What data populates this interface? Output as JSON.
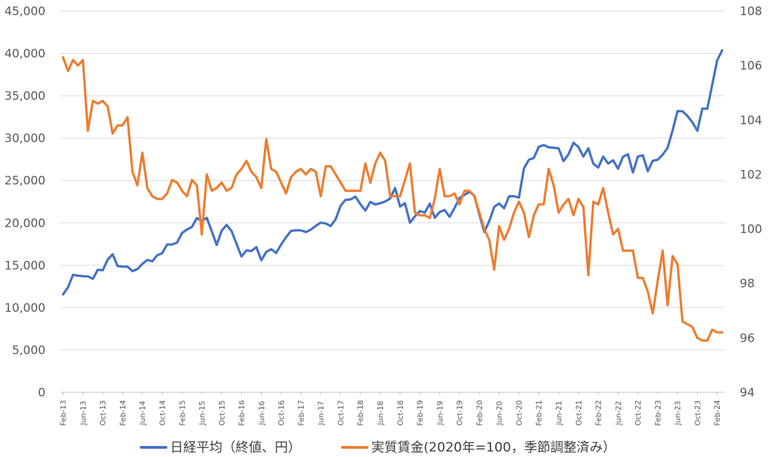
{
  "chart_data": {
    "type": "line",
    "title": "",
    "xlabel": "",
    "ylabel": "",
    "y_left": {
      "min": 0,
      "max": 45000,
      "step": 5000,
      "ticks": [
        "0",
        "5,000",
        "10,000",
        "15,000",
        "20,000",
        "25,000",
        "30,000",
        "35,000",
        "40,000",
        "45,000"
      ]
    },
    "y_right": {
      "min": 94,
      "max": 108,
      "step": 2,
      "ticks": [
        "94",
        "96",
        "98",
        "100",
        "102",
        "104",
        "106",
        "108"
      ]
    },
    "x_tick_labels": [
      "Feb-13",
      "Jun-13",
      "Oct-13",
      "Feb-14",
      "Jun-14",
      "Oct-14",
      "Feb-15",
      "Jun-15",
      "Oct-15",
      "Feb-16",
      "Jun-16",
      "Oct-16",
      "Feb-17",
      "Jun-17",
      "Oct-17",
      "Feb-18",
      "Jun-18",
      "Oct-18",
      "Feb-19",
      "Jun-19",
      "Oct-19",
      "Feb-20",
      "Jun-20",
      "Oct-20",
      "Feb-21",
      "Jun-21",
      "Oct-21",
      "Feb-22",
      "Jun-22",
      "Oct-22",
      "Feb-23",
      "Jun-23",
      "Oct-23",
      "Feb-24"
    ],
    "x_tick_every_months": 4,
    "start_label": "Feb-13",
    "gridlines": true,
    "legend_position": "bottom",
    "series": [
      {
        "name": "日経平均（終値、円）",
        "axis": "left",
        "color": "#4472C4",
        "values": [
          11560,
          12400,
          13860,
          13770,
          13700,
          13680,
          13390,
          14460,
          14400,
          15660,
          16290,
          14900,
          14830,
          14830,
          14300,
          14540,
          15160,
          15620,
          15460,
          16170,
          16410,
          17450,
          17450,
          17670,
          18800,
          19210,
          19520,
          20560,
          20230,
          20590,
          19000,
          17390,
          19070,
          19750,
          19030,
          17520,
          16030,
          16750,
          16680,
          17140,
          15580,
          16570,
          16890,
          16450,
          17430,
          18310,
          19040,
          19120,
          19110,
          18910,
          19200,
          19650,
          20030,
          19920,
          19630,
          20420,
          22010,
          22720,
          22760,
          23100,
          22200,
          21450,
          22470,
          22170,
          22320,
          22520,
          22870,
          24120,
          21920,
          22310,
          20010,
          20770,
          21390,
          21210,
          22260,
          20600,
          21280,
          21520,
          20700,
          21760,
          22930,
          23300,
          23660,
          23210,
          20990,
          18920,
          20190,
          21880,
          22290,
          21710,
          23140,
          23140,
          22980,
          26430,
          27440,
          27660,
          28970,
          29180,
          28910,
          28860,
          28790,
          27280,
          28090,
          29450,
          28960,
          27820,
          28790,
          26990,
          26530,
          27820,
          27000,
          27380,
          26390,
          27800,
          28090,
          25940,
          27820,
          27970,
          26090,
          27330,
          27450,
          28040,
          28860,
          30890,
          33190,
          33170,
          32620,
          31860,
          30860,
          33490,
          33460,
          36290,
          39170,
          40370
        ]
      },
      {
        "name": "実質賃金(2020年=100，季節調整済み）",
        "axis": "right",
        "color": "#ED7D31",
        "values": [
          106.3,
          105.8,
          106.2,
          106.0,
          106.2,
          103.6,
          104.7,
          104.6,
          104.7,
          104.5,
          103.5,
          103.8,
          103.8,
          104.1,
          102.1,
          101.6,
          102.8,
          101.5,
          101.2,
          101.1,
          101.1,
          101.3,
          101.8,
          101.7,
          101.4,
          101.2,
          101.8,
          101.6,
          99.8,
          102.0,
          101.4,
          101.5,
          101.7,
          101.4,
          101.5,
          102.0,
          102.2,
          102.5,
          102.1,
          101.9,
          101.5,
          103.3,
          102.2,
          102.1,
          101.7,
          101.3,
          101.9,
          102.1,
          102.2,
          102.0,
          102.2,
          102.1,
          101.2,
          102.3,
          102.3,
          102.0,
          101.7,
          101.4,
          101.4,
          101.4,
          101.4,
          102.4,
          101.7,
          102.4,
          102.8,
          102.5,
          101.2,
          101.2,
          101.2,
          101.8,
          102.4,
          100.6,
          100.5,
          100.5,
          100.4,
          101.1,
          102.2,
          101.2,
          101.2,
          101.3,
          100.9,
          101.4,
          101.4,
          101.2,
          100.6,
          100.0,
          99.6,
          98.5,
          100.1,
          99.6,
          100.0,
          100.6,
          101.0,
          100.6,
          99.7,
          100.5,
          100.9,
          100.9,
          102.2,
          101.6,
          100.6,
          100.9,
          101.1,
          100.5,
          101.1,
          100.8,
          98.3,
          101.0,
          100.9,
          101.5,
          100.6,
          99.8,
          100.0,
          99.2,
          99.2,
          99.2,
          98.2,
          98.2,
          97.7,
          96.9,
          98.1,
          99.2,
          97.2,
          99.0,
          98.7,
          96.6,
          96.5,
          96.4,
          96.0,
          95.9,
          95.9,
          96.3,
          96.2,
          96.2
        ]
      }
    ]
  }
}
